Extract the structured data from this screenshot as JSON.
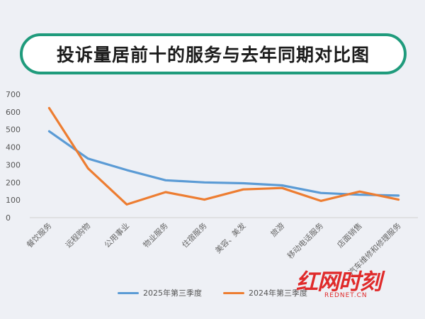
{
  "title": "投诉量居前十的服务与去年同期对比图",
  "colors": {
    "series1": "#5b9bd5",
    "series2": "#ed7d31",
    "title_border": "#1f9b7c",
    "watermark": "#e02a2a"
  },
  "watermark": {
    "brand": "红网时刻",
    "domain": "REDNET.CN"
  },
  "chart_data": {
    "type": "line",
    "categories": [
      "餐饮服务",
      "远程购物",
      "公用事业",
      "物业服务",
      "住宿服务",
      "美容、美发",
      "旅游",
      "移动电话服务",
      "店面销售",
      "汽车维修和修理服务"
    ],
    "series": [
      {
        "name": "2025年第三季度",
        "color": "#5b9bd5",
        "values": [
          490,
          335,
          270,
          212,
          200,
          195,
          183,
          140,
          130,
          125
        ]
      },
      {
        "name": "2024年第三季度",
        "color": "#ed7d31",
        "values": [
          622,
          280,
          75,
          145,
          102,
          160,
          168,
          95,
          148,
          102
        ]
      }
    ],
    "yticks": [
      0,
      100,
      200,
      300,
      400,
      500,
      600,
      700
    ],
    "ylim": [
      0,
      700
    ],
    "grid": false,
    "legend": "bottom"
  }
}
